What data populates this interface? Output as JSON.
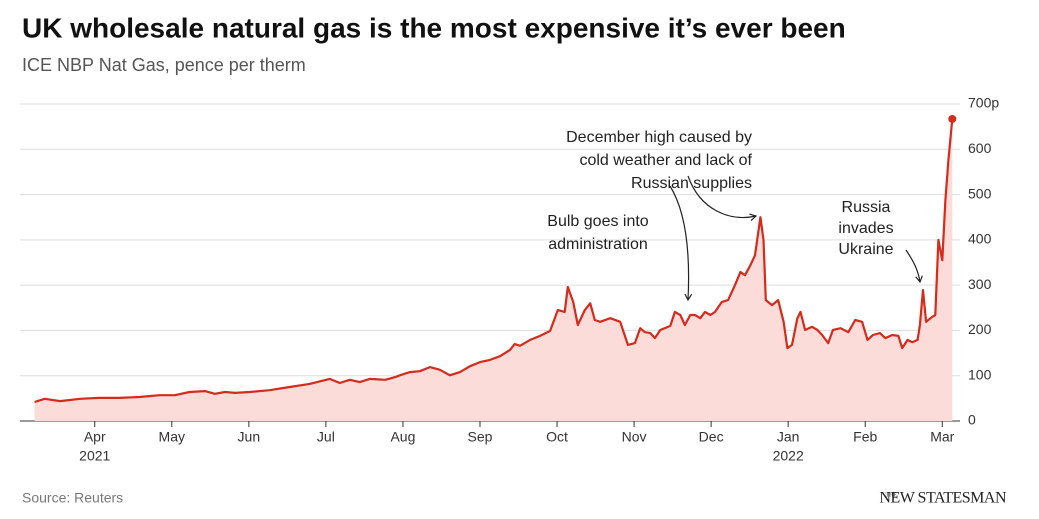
{
  "chart_data": {
    "type": "area",
    "title": "UK wholesale natural gas is the most expensive it’s ever been",
    "subtitle": "ICE NBP Nat Gas, pence per therm",
    "source": "Source: Reuters",
    "brand_prefix": "THE",
    "brand": "NEW STATESMAN",
    "color": "#d52a1c",
    "fill": "#fbdcd8",
    "grid": true,
    "x": [
      3.22,
      3.35,
      3.55,
      3.81,
      4.06,
      4.32,
      4.58,
      4.84,
      5.04,
      5.23,
      5.43,
      5.56,
      5.69,
      5.82,
      6.01,
      6.27,
      6.53,
      6.79,
      7.05,
      7.18,
      7.31,
      7.44,
      7.57,
      7.77,
      7.9,
      7.96,
      8.09,
      8.22,
      8.35,
      8.48,
      8.61,
      8.74,
      8.87,
      9.0,
      9.13,
      9.26,
      9.39,
      9.45,
      9.52,
      9.65,
      9.78,
      9.91,
      10.01,
      10.1,
      10.14,
      10.21,
      10.27,
      10.36,
      10.43,
      10.49,
      10.56,
      10.69,
      10.82,
      10.92,
      11.01,
      11.08,
      11.14,
      11.21,
      11.27,
      11.34,
      11.47,
      11.53,
      11.6,
      11.66,
      11.73,
      11.79,
      11.86,
      11.92,
      11.99,
      12.05,
      12.14,
      12.22,
      12.31,
      12.38,
      12.44,
      12.51,
      12.57,
      12.64,
      12.68,
      12.71,
      12.79,
      12.87,
      12.94,
      12.99,
      13.05,
      13.12,
      13.16,
      13.22,
      13.31,
      13.38,
      13.44,
      13.52,
      13.58,
      13.68,
      13.78,
      13.87,
      13.96,
      14.03,
      14.1,
      14.19,
      14.26,
      14.35,
      14.43,
      14.48,
      14.55,
      14.61,
      14.68,
      14.71,
      14.75,
      14.79,
      14.87,
      14.91,
      14.95,
      15.0,
      15.04,
      15.08,
      15.13
    ],
    "values": [
      42,
      49,
      44,
      49,
      51,
      51,
      53,
      57,
      57,
      64,
      66,
      60,
      64,
      62,
      64,
      68,
      75,
      82,
      93,
      84,
      91,
      86,
      93,
      91,
      97,
      101,
      108,
      110,
      119,
      113,
      101,
      108,
      121,
      130,
      135,
      143,
      157,
      170,
      166,
      179,
      188,
      199,
      245,
      241,
      296,
      263,
      212,
      245,
      260,
      223,
      219,
      227,
      219,
      168,
      172,
      205,
      196,
      194,
      183,
      201,
      210,
      241,
      234,
      212,
      234,
      234,
      227,
      241,
      234,
      241,
      263,
      267,
      300,
      329,
      322,
      344,
      366,
      450,
      400,
      267,
      256,
      267,
      219,
      161,
      168,
      227,
      241,
      201,
      208,
      201,
      190,
      172,
      201,
      205,
      196,
      223,
      219,
      179,
      190,
      194,
      183,
      190,
      188,
      161,
      179,
      174,
      179,
      212,
      289,
      219,
      230,
      234,
      400,
      355,
      488,
      576,
      667
    ],
    "xlim": [
      3.03,
      15.23
    ],
    "xticks": [
      {
        "value": 4,
        "label": "Apr"
      },
      {
        "value": 5,
        "label": "May"
      },
      {
        "value": 6,
        "label": "Jun"
      },
      {
        "value": 7,
        "label": "Jul"
      },
      {
        "value": 8,
        "label": "Aug"
      },
      {
        "value": 9,
        "label": "Sep"
      },
      {
        "value": 10,
        "label": "Oct"
      },
      {
        "value": 11,
        "label": "Nov"
      },
      {
        "value": 12,
        "label": "Dec"
      },
      {
        "value": 13,
        "label": "Jan"
      },
      {
        "value": 14,
        "label": "Feb"
      },
      {
        "value": 15,
        "label": "Mar"
      }
    ],
    "year_labels": [
      {
        "value": 4,
        "label": "2021"
      },
      {
        "value": 13,
        "label": "2022"
      }
    ],
    "ylim": [
      0,
      700
    ],
    "yticks": [
      0,
      100,
      200,
      300,
      400,
      500,
      600,
      {
        "value": 700,
        "label": "700p"
      }
    ],
    "annotations": [
      {
        "lines": [
          "December high caused by",
          "cold weather and lack of",
          "Russian supplies"
        ]
      },
      {
        "lines": [
          "Bulb goes into",
          "administration"
        ]
      },
      {
        "lines": [
          "Russia",
          "invades",
          "Ukraine"
        ]
      }
    ]
  }
}
